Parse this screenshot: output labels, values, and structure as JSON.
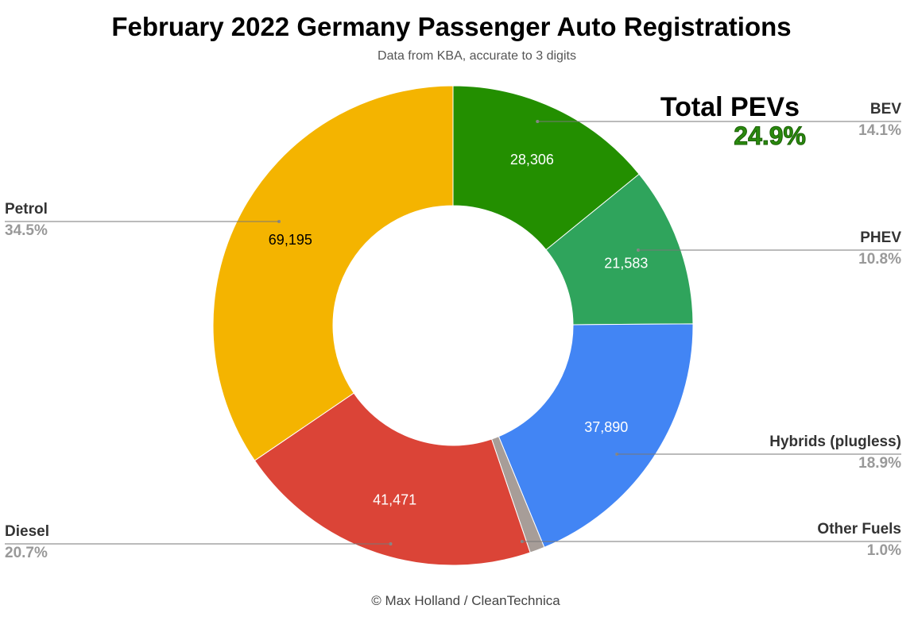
{
  "chart_data": {
    "type": "pie",
    "donut": true,
    "title": "February 2022 Germany Passenger Auto Registrations",
    "subtitle": "Data from KBA, accurate to 3 digits",
    "footer": "© Max Holland / CleanTechnica",
    "slices": [
      {
        "name": "BEV",
        "value": 28306,
        "value_label": "28,306",
        "percent_label": "14.1%",
        "color": "#238f00",
        "value_text_color": "#ffffff"
      },
      {
        "name": "PHEV",
        "value": 21583,
        "value_label": "21,583",
        "percent_label": "10.8%",
        "color": "#2fa45c",
        "value_text_color": "#ffffff"
      },
      {
        "name": "Hybrids (plugless)",
        "value": 37890,
        "value_label": "37,890",
        "percent_label": "18.9%",
        "color": "#4285f4",
        "value_text_color": "#ffffff"
      },
      {
        "name": "Other Fuels",
        "value": 2000,
        "value_label": "",
        "percent_label": "1.0%",
        "color": "#a79d98",
        "value_text_color": "#ffffff"
      },
      {
        "name": "Diesel",
        "value": 41471,
        "value_label": "41,471",
        "percent_label": "20.7%",
        "color": "#db4437",
        "value_text_color": "#ffffff"
      },
      {
        "name": "Petrol",
        "value": 69195,
        "value_label": "69,195",
        "percent_label": "34.5%",
        "color": "#f4b400",
        "value_text_color": "#000000"
      }
    ],
    "annotation": {
      "label": "Total PEVs",
      "value": "24.9%",
      "color": "#2a8a0e"
    }
  }
}
